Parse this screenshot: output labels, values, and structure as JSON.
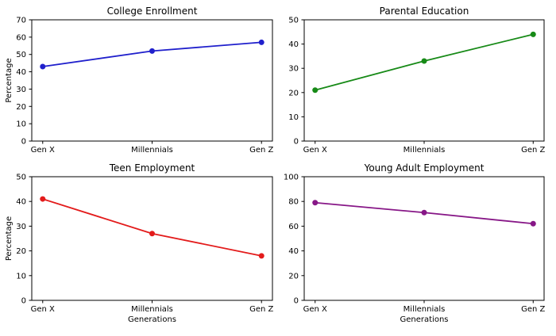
{
  "figure": {
    "background": "#ffffff",
    "axis_color": "#000000",
    "text_color": "#000000"
  },
  "chart_data": [
    {
      "type": "line",
      "title": "College Enrollment",
      "categories": [
        "Gen X",
        "Millennials",
        "Gen Z"
      ],
      "values": [
        43,
        52,
        57
      ],
      "color": "#2020cc",
      "ylim": [
        0,
        70
      ],
      "ytick_step": 10,
      "ylabel": "Percentage",
      "xlabel": "",
      "marker": "circle",
      "grid": false,
      "legend": null
    },
    {
      "type": "line",
      "title": "Parental Education",
      "categories": [
        "Gen X",
        "Millennials",
        "Gen Z"
      ],
      "values": [
        21,
        33,
        44
      ],
      "color": "#178a17",
      "ylim": [
        0,
        50
      ],
      "ytick_step": 10,
      "ylabel": "",
      "xlabel": "",
      "marker": "circle",
      "grid": false,
      "legend": null
    },
    {
      "type": "line",
      "title": "Teen Employment",
      "categories": [
        "Gen X",
        "Millennials",
        "Gen Z"
      ],
      "values": [
        41,
        27,
        18
      ],
      "color": "#e31b1b",
      "ylim": [
        0,
        50
      ],
      "ytick_step": 10,
      "ylabel": "Percentage",
      "xlabel": "Generations",
      "marker": "circle",
      "grid": false,
      "legend": null
    },
    {
      "type": "line",
      "title": "Young Adult Employment",
      "categories": [
        "Gen X",
        "Millennials",
        "Gen Z"
      ],
      "values": [
        79,
        71,
        62
      ],
      "color": "#871787",
      "ylim": [
        0,
        100
      ],
      "ytick_step": 20,
      "ylabel": "",
      "xlabel": "Generations",
      "marker": "circle",
      "grid": false,
      "legend": null
    }
  ]
}
